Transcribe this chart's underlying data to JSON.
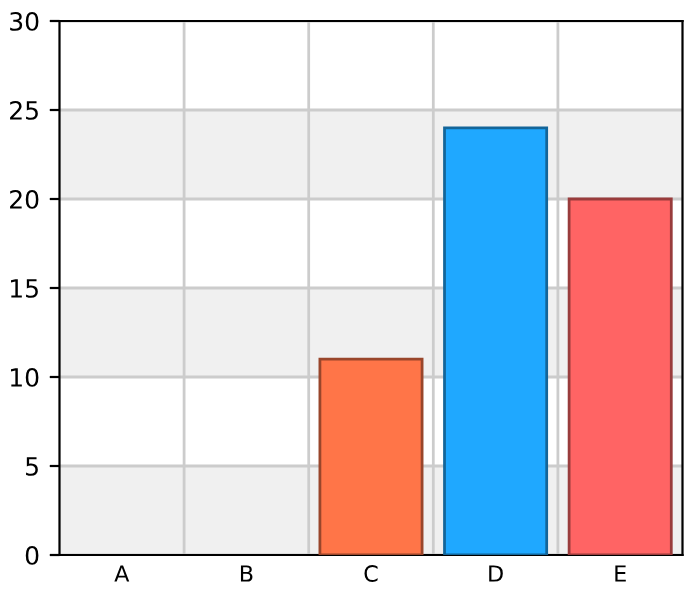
{
  "chart_data": {
    "type": "bar",
    "categories": [
      "A",
      "B",
      "C",
      "D",
      "E"
    ],
    "values": [
      0,
      0,
      11,
      24,
      20
    ],
    "colors": [
      null,
      null,
      "#ff7548",
      "#1fa8ff",
      "#ff6464"
    ],
    "ylim": [
      0,
      30
    ],
    "yticks": [
      0,
      5,
      10,
      15,
      20,
      25,
      30
    ],
    "grid": true,
    "bands": [
      {
        "axis": "y",
        "from": 0,
        "to": 5,
        "color": "#f0f0f0"
      },
      {
        "axis": "y",
        "from": 10,
        "to": 15,
        "color": "#f0f0f0"
      },
      {
        "axis": "y",
        "from": 20,
        "to": 25,
        "color": "#f0f0f0"
      }
    ]
  }
}
